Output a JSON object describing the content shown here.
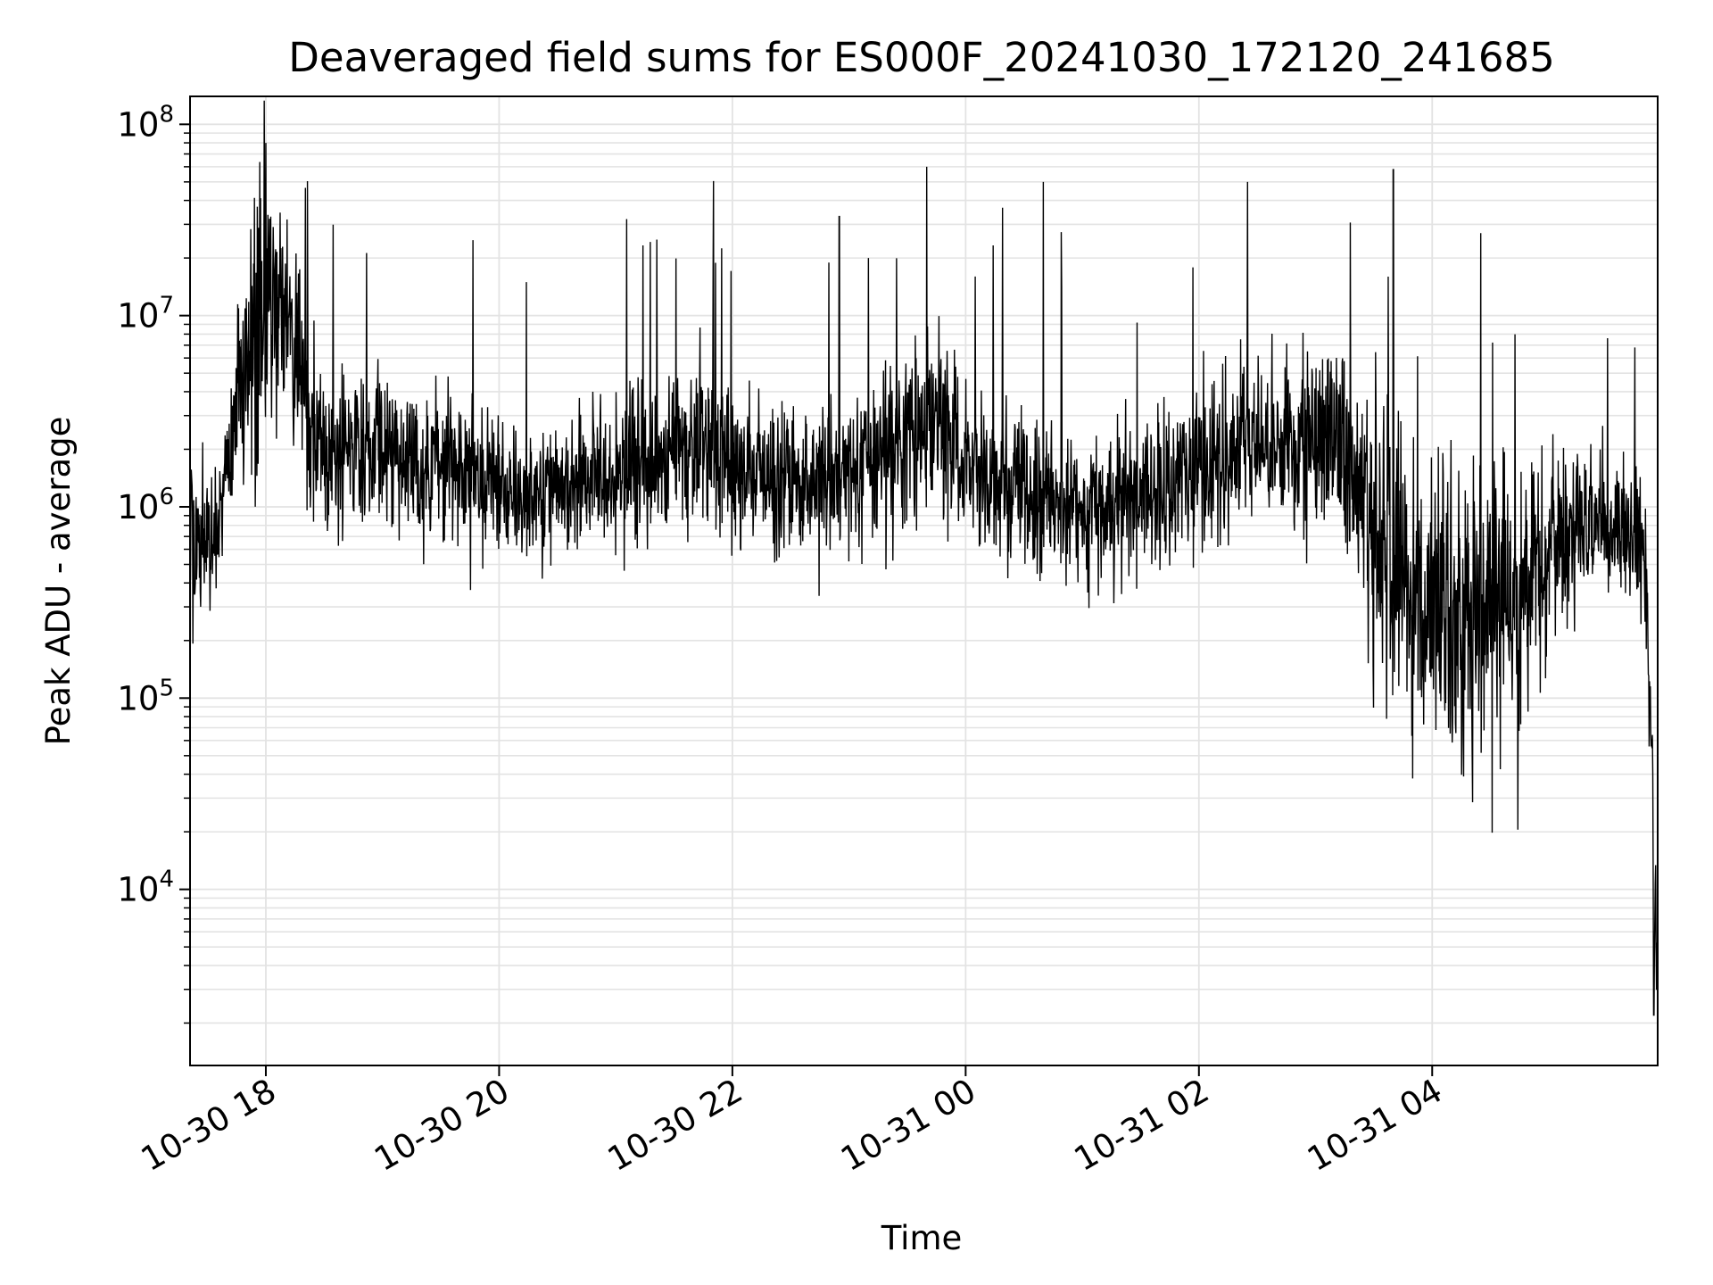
{
  "chart_data": {
    "type": "line",
    "title": "Deaveraged field sums for ES000F_20241030_172120_241685",
    "xlabel": "Time",
    "ylabel": "Peak ADU - average",
    "x_tick_labels": [
      "10-30 18",
      "10-30 20",
      "10-30 22",
      "10-31 00",
      "10-31 02",
      "10-31 04"
    ],
    "x_tick_values": [
      "2024-10-30T18:00",
      "2024-10-30T20:00",
      "2024-10-30T22:00",
      "2024-10-31T00:00",
      "2024-10-31T02:00",
      "2024-10-31T04:00"
    ],
    "xlim": [
      "2024-10-30T17:21",
      "2024-10-31T05:56"
    ],
    "y_scale": "log",
    "ylim": [
      1200,
      140000000
    ],
    "y_tick_values": [
      10000,
      100000,
      1000000,
      10000000,
      100000000
    ],
    "y_tick_base": "10",
    "y_tick_exponents": [
      "4",
      "5",
      "6",
      "7",
      "8"
    ],
    "grid": true,
    "line_color": "#000000",
    "series_profile": [
      [
        "2024-10-30T17:21",
        700000,
        0.5
      ],
      [
        "2024-10-30T17:33",
        700000,
        0.5
      ],
      [
        "2024-10-30T17:40",
        1600000,
        0.4
      ],
      [
        "2024-10-30T17:50",
        7000000,
        0.9
      ],
      [
        "2024-10-30T18:00",
        14000000,
        1.0
      ],
      [
        "2024-10-30T18:15",
        7000000,
        0.8
      ],
      [
        "2024-10-30T18:25",
        2000000,
        0.55
      ],
      [
        "2024-10-30T19:00",
        2000000,
        0.55
      ],
      [
        "2024-10-30T19:40",
        1500000,
        0.5
      ],
      [
        "2024-10-30T20:15",
        1100000,
        0.45
      ],
      [
        "2024-10-30T21:00",
        1400000,
        0.5
      ],
      [
        "2024-10-30T21:40",
        2200000,
        0.55
      ],
      [
        "2024-10-30T22:20",
        1300000,
        0.5
      ],
      [
        "2024-10-30T23:00",
        1500000,
        0.5
      ],
      [
        "2024-10-30T23:40",
        2800000,
        0.6
      ],
      [
        "2024-10-31T00:15",
        1400000,
        0.5
      ],
      [
        "2024-10-31T01:00",
        1000000,
        0.5
      ],
      [
        "2024-10-31T01:40",
        1200000,
        0.5
      ],
      [
        "2024-10-31T02:20",
        2000000,
        0.55
      ],
      [
        "2024-10-31T03:10",
        2200000,
        0.6
      ],
      [
        "2024-10-31T03:28",
        800000,
        0.95
      ],
      [
        "2024-10-31T04:00",
        250000,
        1.05
      ],
      [
        "2024-10-31T04:40",
        300000,
        1.0
      ],
      [
        "2024-10-31T05:15",
        800000,
        0.5
      ],
      [
        "2024-10-31T05:48",
        800000,
        0.5
      ],
      [
        "2024-10-31T05:52",
        100000,
        0.5
      ],
      [
        "2024-10-31T05:56",
        4000,
        0.6
      ]
    ],
    "spikes": [
      [
        "2024-10-30T18:00",
        80000000
      ],
      [
        "2024-10-30T22:55",
        33000000
      ],
      [
        "2024-10-30T23:40",
        60000000
      ],
      [
        "2024-10-31T00:40",
        50000000
      ],
      [
        "2024-10-31T02:25",
        50000000
      ],
      [
        "2024-10-31T03:40",
        58000000
      ],
      [
        "2024-10-31T04:25",
        27000000
      ],
      [
        "2024-10-30T21:50",
        17000000
      ],
      [
        "2024-10-30T23:10",
        20000000
      ],
      [
        "2024-10-31T00:05",
        16000000
      ],
      [
        "2024-10-31T03:50",
        38000
      ],
      [
        "2024-10-31T05:54",
        2200
      ]
    ]
  }
}
